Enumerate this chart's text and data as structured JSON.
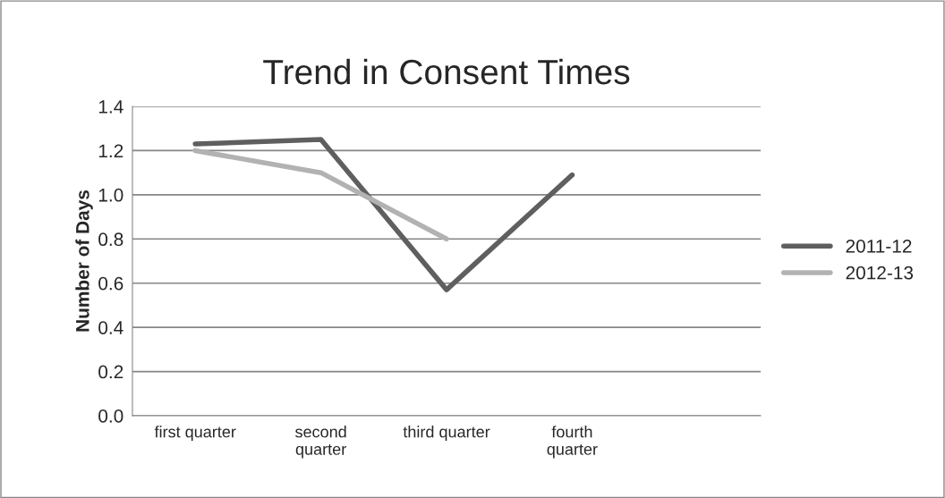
{
  "chart_data": {
    "type": "line",
    "title": "Trend in Consent Times",
    "ylabel": "Number of Days",
    "categories": [
      "first quarter",
      "second\nquarter",
      "third quarter",
      "fourth\nquarter",
      null
    ],
    "series": [
      {
        "name": "2011-12",
        "color": "#5f5f5f",
        "values": [
          1.23,
          1.25,
          0.57,
          1.09,
          null
        ]
      },
      {
        "name": "2012-13",
        "color": "#b2b2b2",
        "values": [
          1.2,
          1.1,
          0.8,
          null,
          null
        ]
      }
    ],
    "ylim": [
      0,
      1.4
    ],
    "yticks": [
      {
        "value": 0,
        "label": "0.0"
      },
      {
        "value": 0.2,
        "label": "0.2"
      },
      {
        "value": 0.4,
        "label": "0.4"
      },
      {
        "value": 0.6,
        "label": "0.6"
      },
      {
        "value": 0.8,
        "label": "0.8"
      },
      {
        "value": 1.0,
        "label": "1.0"
      },
      {
        "value": 1.2,
        "label": "1.2"
      },
      {
        "value": 1.4,
        "label": "1.4"
      }
    ],
    "grid": "y",
    "legend": "right",
    "marker": "none",
    "line_style": "solid"
  }
}
